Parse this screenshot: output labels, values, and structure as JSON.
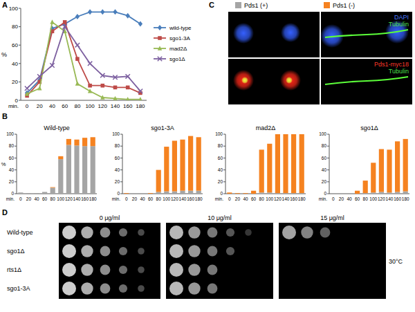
{
  "panel_labels": [
    "A",
    "B",
    "C",
    "D"
  ],
  "chart_data": [
    {
      "type": "line",
      "categories": [
        "0",
        "20",
        "40",
        "60",
        "80",
        "100",
        "120",
        "140",
        "160",
        "180"
      ],
      "x_label": "min.",
      "y_label": "%",
      "ylim": [
        0,
        100
      ],
      "yticks": [
        0,
        20,
        40,
        60,
        80,
        100
      ],
      "grid": false,
      "legend": "right",
      "series": [
        {
          "name": "wild-type",
          "color": "#4a7ebb",
          "marker": "diamond",
          "values": [
            8,
            22,
            78,
            83,
            91,
            96,
            96,
            96,
            92,
            83
          ]
        },
        {
          "name": "sgo1-3A",
          "color": "#be4b48",
          "marker": "square",
          "values": [
            5,
            20,
            75,
            85,
            45,
            16,
            16,
            14,
            14,
            8
          ]
        },
        {
          "name": "mad2Δ",
          "color": "#98b954",
          "marker": "triangle",
          "values": [
            7,
            13,
            85,
            75,
            18,
            10,
            3,
            2,
            1,
            1
          ]
        },
        {
          "name": "sgo1Δ",
          "color": "#7d60a0",
          "marker": "x",
          "values": [
            13,
            26,
            38,
            80,
            60,
            40,
            27,
            25,
            26,
            10
          ]
        }
      ]
    },
    {
      "type": "bar",
      "stacked": true,
      "title": "Wild-type",
      "categories": [
        "0",
        "20",
        "40",
        "60",
        "80",
        "100",
        "120",
        "140",
        "160",
        "180"
      ],
      "x_label": "min.",
      "y_label": "%",
      "ylim": [
        0,
        100
      ],
      "yticks": [
        0,
        20,
        40,
        60,
        80,
        100
      ],
      "grid": false,
      "legend": "top",
      "series": [
        {
          "name": "Pds1 (+)",
          "color": "#a5a5a5",
          "values": [
            2,
            1,
            1,
            3,
            10,
            58,
            82,
            81,
            80,
            80
          ]
        },
        {
          "name": "Pds1 (-)",
          "color": "#f58220",
          "values": [
            0,
            0,
            0,
            0,
            1,
            5,
            10,
            10,
            14,
            15
          ]
        }
      ]
    },
    {
      "type": "bar",
      "stacked": true,
      "title": "sgo1-3A",
      "categories": [
        "0",
        "20",
        "40",
        "60",
        "80",
        "100",
        "120",
        "140",
        "160",
        "180"
      ],
      "x_label": "min.",
      "ylim": [
        0,
        100
      ],
      "yticks": [
        0,
        20,
        40,
        60,
        80,
        100
      ],
      "grid": false,
      "series": [
        {
          "name": "Pds1 (+)",
          "color": "#a5a5a5",
          "values": [
            0,
            0,
            0,
            0,
            3,
            4,
            4,
            5,
            5,
            5
          ]
        },
        {
          "name": "Pds1 (-)",
          "color": "#f58220",
          "values": [
            1,
            0,
            0,
            1,
            37,
            75,
            85,
            86,
            92,
            90
          ]
        }
      ]
    },
    {
      "type": "bar",
      "stacked": true,
      "title": "mad2Δ",
      "categories": [
        "0",
        "20",
        "40",
        "60",
        "80",
        "100",
        "120",
        "140",
        "160",
        "180"
      ],
      "x_label": "min.",
      "ylim": [
        0,
        100
      ],
      "yticks": [
        0,
        20,
        40,
        60,
        80,
        100
      ],
      "grid": false,
      "series": [
        {
          "name": "Pds1 (+)",
          "color": "#a5a5a5",
          "values": [
            0,
            0,
            0,
            0,
            2,
            2,
            1,
            1,
            1,
            1
          ]
        },
        {
          "name": "Pds1 (-)",
          "color": "#f58220",
          "values": [
            2,
            1,
            1,
            5,
            72,
            82,
            99,
            99,
            99,
            99
          ]
        }
      ]
    },
    {
      "type": "bar",
      "stacked": true,
      "title": "sgo1Δ",
      "categories": [
        "0",
        "20",
        "40",
        "60",
        "80",
        "100",
        "120",
        "140",
        "160",
        "180"
      ],
      "x_label": "min.",
      "ylim": [
        0,
        100
      ],
      "yticks": [
        0,
        20,
        40,
        60,
        80,
        100
      ],
      "grid": false,
      "series": [
        {
          "name": "Pds1 (+)",
          "color": "#a5a5a5",
          "values": [
            0,
            0,
            0,
            0,
            1,
            2,
            3,
            2,
            3,
            4
          ]
        },
        {
          "name": "Pds1 (-)",
          "color": "#f58220",
          "values": [
            0,
            0,
            0,
            5,
            21,
            50,
            72,
            72,
            85,
            88
          ]
        }
      ]
    }
  ],
  "microscopy": {
    "panels": [
      {
        "stain": "DAPI",
        "counterstain": "Tubulin"
      },
      {
        "stain": "Pds1-myc18",
        "counterstain": "Tubulin"
      }
    ]
  },
  "spot_assay": {
    "concentrations": [
      "0 μg/ml",
      "10 μg/ml",
      "15 μg/ml"
    ],
    "strains": [
      "Wild-type",
      "sgo1Δ",
      "rts1Δ",
      "sgo1-3A"
    ],
    "temperature": "30°C"
  }
}
